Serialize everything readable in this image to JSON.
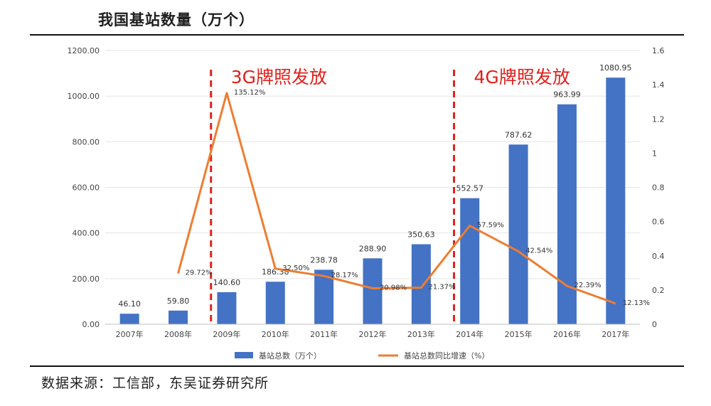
{
  "header": {
    "title": "我国基站数量（万个）"
  },
  "footer": {
    "source": "数据来源：工信部，东吴证券研究所"
  },
  "annotations": {
    "g3": "3G牌照发放",
    "g4": "4G牌照发放"
  },
  "colors": {
    "bar": "#4472c4",
    "line": "#ed7d31",
    "marker_line": "#e0201b",
    "annotation": "#e0201b"
  },
  "chart_data": {
    "type": "bar",
    "categories": [
      "2007年",
      "2008年",
      "2009年",
      "2010年",
      "2011年",
      "2012年",
      "2013年",
      "2014年",
      "2015年",
      "2016年",
      "2017年"
    ],
    "y_ticks": [
      "0.00",
      "200.00",
      "400.00",
      "600.00",
      "800.00",
      "1000.00",
      "1200.00"
    ],
    "y2_ticks": [
      "0",
      "0.2",
      "0.4",
      "0.6",
      "0.8",
      "1",
      "1.2",
      "1.4",
      "1.6"
    ],
    "ylim": [
      0,
      1200
    ],
    "y2lim": [
      0,
      1.6
    ],
    "series": [
      {
        "name": "基站总数（万个）",
        "type": "bar",
        "axis": "left",
        "values": [
          46.1,
          59.8,
          140.6,
          186.38,
          238.78,
          288.9,
          350.63,
          552.57,
          787.62,
          963.99,
          1080.95
        ],
        "labels": [
          "46.10",
          "59.80",
          "140.60",
          "186.38",
          "238.78",
          "288.90",
          "350.63",
          "552.57",
          "787.62",
          "963.99",
          "1080.95"
        ]
      },
      {
        "name": "基站总数同比增速（%）",
        "type": "line",
        "axis": "right",
        "values": [
          null,
          0.2972,
          1.3512,
          0.325,
          0.2817,
          0.2098,
          0.2137,
          0.5759,
          0.4254,
          0.2239,
          0.1213
        ],
        "labels": [
          "",
          "29.72%",
          "135.12%",
          "32.50%",
          "28.17%",
          "20.98%",
          "21.37%",
          "57.59%",
          "42.54%",
          "22.39%",
          "12.13%"
        ]
      }
    ],
    "legend": "bottom-center"
  }
}
